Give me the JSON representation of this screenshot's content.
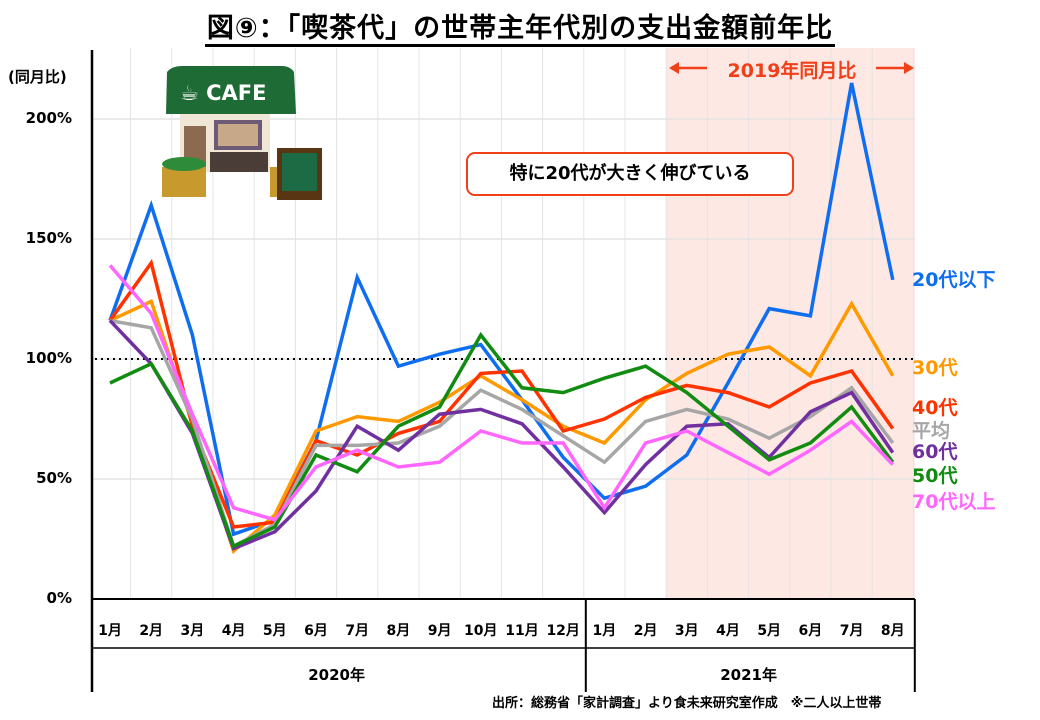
{
  "title": "図⑨：「喫茶代」の世帯主年代別の支出金額前年比",
  "note": "特に20代が大きく伸びている",
  "source": "出所：総務省「家計調査」より食未来研究室作成　※二人以上世帯",
  "chart_data": {
    "type": "line",
    "title": "図⑨：「喫茶代」の世帯主年代別の支出金額前年比",
    "ylabel": "(同月比)",
    "ylim": [
      0,
      200
    ],
    "yticks": [
      "0%",
      "50%",
      "100%",
      "150%",
      "200%"
    ],
    "ytick_values": [
      0,
      50,
      100,
      150,
      200
    ],
    "reference_line": 100,
    "categories": [
      "1月",
      "2月",
      "3月",
      "4月",
      "5月",
      "6月",
      "7月",
      "8月",
      "9月",
      "10月",
      "11月",
      "12月",
      "1月",
      "2月",
      "3月",
      "4月",
      "5月",
      "6月",
      "7月",
      "8月"
    ],
    "years": [
      {
        "label": "2020年",
        "from": 0,
        "to": 11
      },
      {
        "label": "2021年",
        "from": 12,
        "to": 19
      }
    ],
    "shaded_region": {
      "label": "←2019年同月比→",
      "text": "2019年同月比",
      "from": 14,
      "to": 19,
      "color": "#fde8e4"
    },
    "series": [
      {
        "name": "20代以下",
        "color": "#0f6ef0",
        "values": [
          116,
          164,
          110,
          27,
          33,
          66,
          134,
          97,
          102,
          106,
          83,
          59,
          42,
          47,
          60,
          90,
          121,
          118,
          215,
          133
        ]
      },
      {
        "name": "30代",
        "color": "#ff9900",
        "values": [
          116,
          124,
          73,
          20,
          35,
          70,
          76,
          74,
          82,
          93,
          83,
          72,
          65,
          83,
          94,
          102,
          105,
          93,
          123,
          93
        ]
      },
      {
        "name": "40代",
        "color": "#ff3300",
        "values": [
          116,
          140,
          72,
          30,
          32,
          66,
          60,
          69,
          74,
          94,
          95,
          70,
          75,
          84,
          89,
          86,
          80,
          90,
          95,
          71
        ]
      },
      {
        "name": "平均",
        "color": "#a6a6a6",
        "values": [
          116,
          113,
          75,
          22,
          31,
          64,
          64,
          65,
          72,
          87,
          79,
          68,
          57,
          74,
          79,
          75,
          67,
          76,
          88,
          65
        ]
      },
      {
        "name": "60代",
        "color": "#7030a0",
        "values": [
          116,
          98,
          69,
          21,
          28,
          45,
          72,
          62,
          77,
          79,
          73,
          55,
          36,
          56,
          72,
          73,
          59,
          78,
          86,
          61
        ]
      },
      {
        "name": "50代",
        "color": "#118c11",
        "values": [
          90,
          98,
          70,
          22,
          30,
          60,
          53,
          72,
          80,
          110,
          88,
          86,
          92,
          97,
          86,
          72,
          58,
          65,
          80,
          57
        ]
      },
      {
        "name": "70代以上",
        "color": "#ff66ff",
        "values": [
          139,
          119,
          77,
          38,
          33,
          55,
          62,
          55,
          57,
          70,
          65,
          65,
          38,
          65,
          70,
          61,
          52,
          62,
          74,
          56
        ]
      }
    ],
    "label_order": [
      "20代以下",
      "30代",
      "40代",
      "平均",
      "60代",
      "50代",
      "70代以上"
    ]
  }
}
